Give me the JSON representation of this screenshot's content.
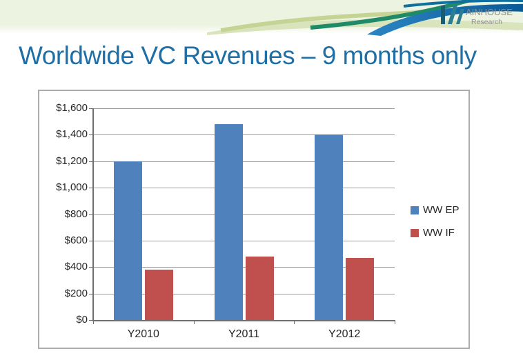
{
  "header": {
    "logo": {
      "brand_top": "AINHOUSE",
      "brand_bottom": "Research"
    },
    "band_color": "#EDF3E1",
    "swoosh_colors": {
      "blue": "#0E639C",
      "blue_light": "#2C86C4",
      "teal": "#1F8A68",
      "sage": "#C5D494",
      "sage_light": "#D9E3BC",
      "logo_teal": "#1A5E74",
      "logo_w": "#2C7D8F",
      "logo_gray": "#8E8E8E"
    }
  },
  "title": "Worldwide VC Revenues – 9 months only",
  "title_color": "#1F6FA6",
  "chart_data": {
    "type": "bar",
    "title": "",
    "xlabel": "",
    "ylabel": "",
    "categories": [
      "Y2010",
      "Y2011",
      "Y2012"
    ],
    "series": [
      {
        "name": "WW EP",
        "color": "#4F81BD",
        "values": [
          1200,
          1480,
          1400
        ]
      },
      {
        "name": "WW IF",
        "color": "#C0504D",
        "values": [
          380,
          480,
          470
        ]
      }
    ],
    "ylim": [
      0,
      1600
    ],
    "ytick_step": 200,
    "ytick_labels": [
      "$0",
      "$200",
      "$400",
      "$600",
      "$800",
      "$1,000",
      "$1,200",
      "$1,400",
      "$1,600"
    ],
    "grid": true,
    "legend_position": "right"
  }
}
